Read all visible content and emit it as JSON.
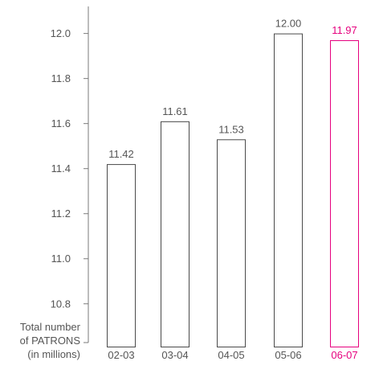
{
  "chart_data": {
    "type": "bar",
    "categories": [
      "02-03",
      "03-04",
      "04-05",
      "05-06",
      "06-07"
    ],
    "values": [
      11.42,
      11.61,
      11.53,
      12.0,
      11.97
    ],
    "value_labels": [
      "11.42",
      "11.61",
      "11.53",
      "12.00",
      "11.97"
    ],
    "highlight_index": 4,
    "ylabel_lines": [
      "Total number",
      "of PATRONS",
      "(in millions)"
    ],
    "y_ticks": [
      10.8,
      11.0,
      11.2,
      11.4,
      11.6,
      11.8,
      12.0
    ],
    "y_tick_labels": [
      "10.8",
      "11.0",
      "11.2",
      "11.4",
      "11.6",
      "11.8",
      "12.0"
    ],
    "ylim": [
      10.61,
      12.12
    ],
    "grid": false,
    "colors": {
      "bar_stroke": "#4a4a4a",
      "highlight": "#e6007e",
      "text": "#555555",
      "axis": "#7a7a7a"
    }
  }
}
